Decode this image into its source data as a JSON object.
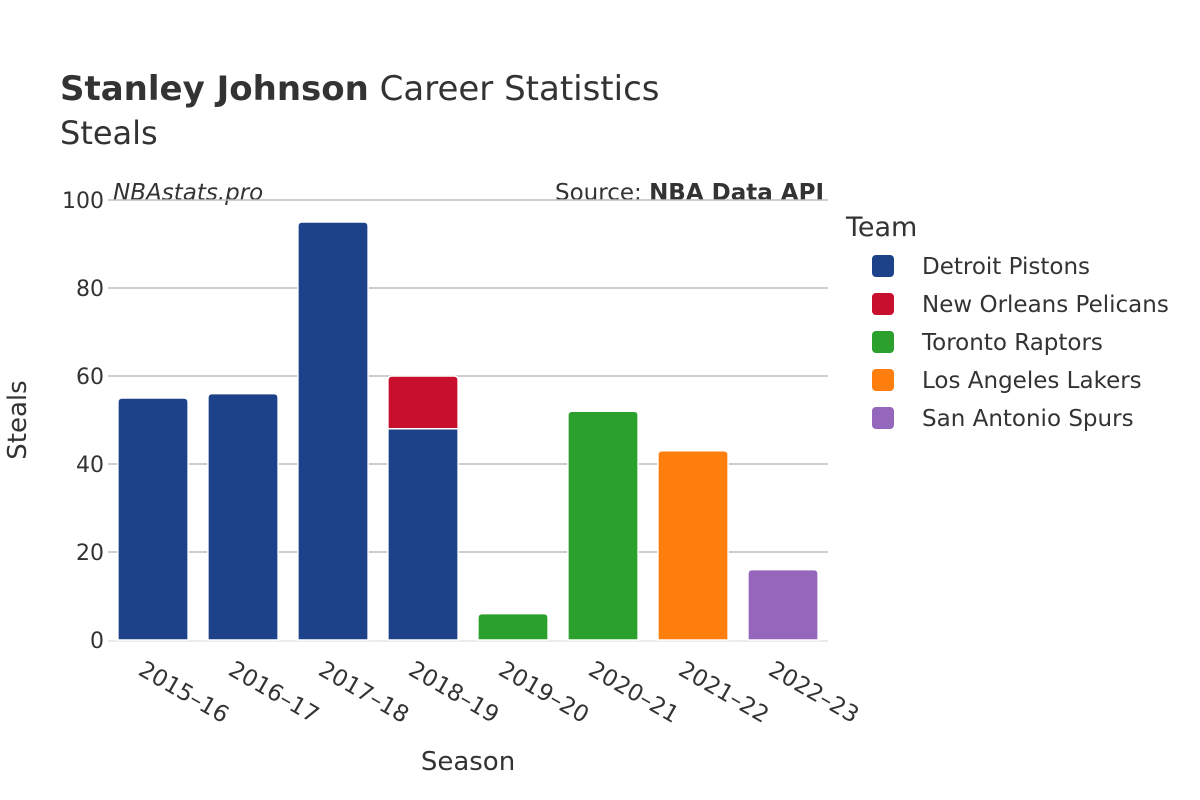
{
  "header": {
    "title_bold": "Stanley Johnson",
    "title_rest": " Career Statistics",
    "subtitle": "Steals",
    "watermark": "NBAstats.pro",
    "source_prefix": "Source: ",
    "source_name": "NBA Data API"
  },
  "legend": {
    "title": "Team"
  },
  "chart_data": {
    "type": "bar",
    "stacked": true,
    "title": "Stanley Johnson Career Statistics",
    "subtitle": "Steals",
    "xlabel": "Season",
    "ylabel": "Steals",
    "ylim": [
      0,
      100
    ],
    "yticks": [
      0,
      20,
      40,
      60,
      80,
      100
    ],
    "grid": true,
    "legend_position": "right",
    "categories": [
      "2015–16",
      "2016–17",
      "2017–18",
      "2018–19",
      "2019–20",
      "2020–21",
      "2021–22",
      "2022–23"
    ],
    "series": [
      {
        "name": "Detroit Pistons",
        "color": "#1d428a",
        "values": [
          55,
          56,
          95,
          48,
          0,
          0,
          0,
          0
        ]
      },
      {
        "name": "New Orleans Pelicans",
        "color": "#c8102e",
        "values": [
          0,
          0,
          0,
          12,
          0,
          0,
          0,
          0
        ]
      },
      {
        "name": "Toronto Raptors",
        "color": "#2ca02c",
        "values": [
          0,
          0,
          0,
          0,
          6,
          52,
          0,
          0
        ]
      },
      {
        "name": "Los Angeles Lakers",
        "color": "#ff7f0e",
        "values": [
          0,
          0,
          0,
          0,
          0,
          0,
          43,
          0
        ]
      },
      {
        "name": "San Antonio Spurs",
        "color": "#9467bd",
        "values": [
          0,
          0,
          0,
          0,
          0,
          0,
          0,
          16
        ]
      }
    ]
  }
}
